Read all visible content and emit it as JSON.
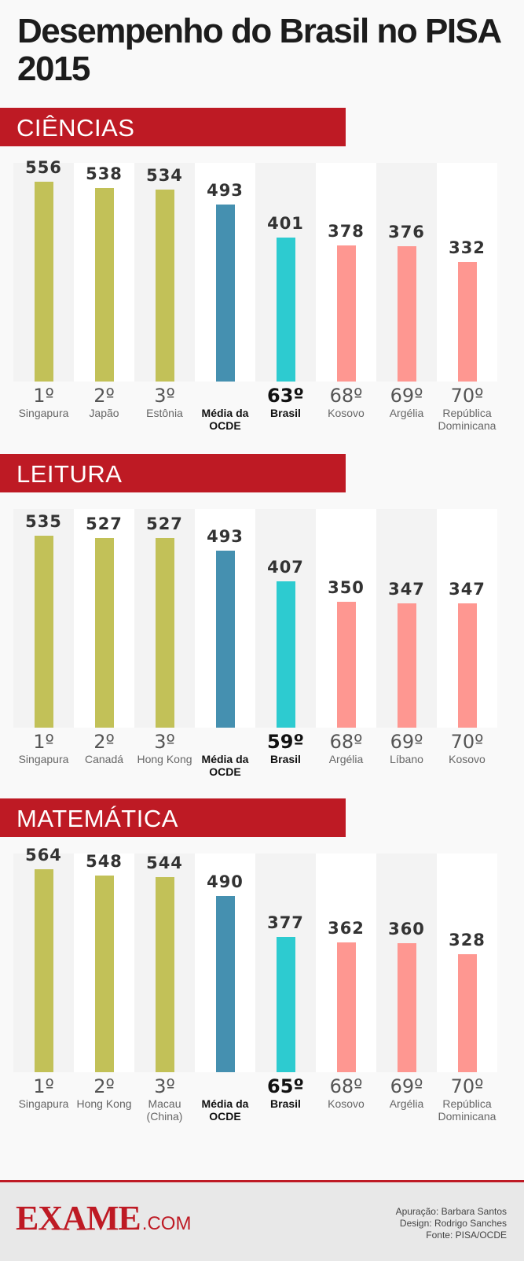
{
  "title": "Desempenho do Brasil no PISA 2015",
  "colors": {
    "band": "#be1a24",
    "top3": "#c2c158",
    "oecd": "#4590b0",
    "brazil": "#2dcbd0",
    "others": "#fe9791",
    "col_light": "#ffffff",
    "col_shade": "#f3f3f3"
  },
  "chart_data": [
    {
      "type": "bar",
      "title": "CIÊNCIAS",
      "ylim": [
        0,
        600
      ],
      "items": [
        {
          "value": 556,
          "rank": "1º",
          "label": "Singapura",
          "group": "top3"
        },
        {
          "value": 538,
          "rank": "2º",
          "label": "Japão",
          "group": "top3"
        },
        {
          "value": 534,
          "rank": "3º",
          "label": "Estônia",
          "group": "top3"
        },
        {
          "value": 493,
          "rank": "",
          "label": "Média da OCDE",
          "group": "oecd"
        },
        {
          "value": 401,
          "rank": "63º",
          "label": "Brasil",
          "group": "brazil"
        },
        {
          "value": 378,
          "rank": "68º",
          "label": "Kosovo",
          "group": "others"
        },
        {
          "value": 376,
          "rank": "69º",
          "label": "Argélia",
          "group": "others"
        },
        {
          "value": 332,
          "rank": "70º",
          "label": "República Dominicana",
          "group": "others"
        }
      ]
    },
    {
      "type": "bar",
      "title": "LEITURA",
      "ylim": [
        0,
        600
      ],
      "items": [
        {
          "value": 535,
          "rank": "1º",
          "label": "Singapura",
          "group": "top3"
        },
        {
          "value": 527,
          "rank": "2º",
          "label": "Canadá",
          "group": "top3"
        },
        {
          "value": 527,
          "rank": "3º",
          "label": "Hong Kong",
          "group": "top3"
        },
        {
          "value": 493,
          "rank": "",
          "label": "Média da OCDE",
          "group": "oecd"
        },
        {
          "value": 407,
          "rank": "59º",
          "label": "Brasil",
          "group": "brazil"
        },
        {
          "value": 350,
          "rank": "68º",
          "label": "Argélia",
          "group": "others"
        },
        {
          "value": 347,
          "rank": "69º",
          "label": "Líbano",
          "group": "others"
        },
        {
          "value": 347,
          "rank": "70º",
          "label": "Kosovo",
          "group": "others"
        }
      ]
    },
    {
      "type": "bar",
      "title": "MATEMÁTICA",
      "ylim": [
        0,
        600
      ],
      "items": [
        {
          "value": 564,
          "rank": "1º",
          "label": "Singapura",
          "group": "top3"
        },
        {
          "value": 548,
          "rank": "2º",
          "label": "Hong Kong",
          "group": "top3"
        },
        {
          "value": 544,
          "rank": "3º",
          "label": "Macau (China)",
          "group": "top3"
        },
        {
          "value": 490,
          "rank": "",
          "label": "Média da OCDE",
          "group": "oecd"
        },
        {
          "value": 377,
          "rank": "65º",
          "label": "Brasil",
          "group": "brazil"
        },
        {
          "value": 362,
          "rank": "68º",
          "label": "Kosovo",
          "group": "others"
        },
        {
          "value": 360,
          "rank": "69º",
          "label": "Argélia",
          "group": "others"
        },
        {
          "value": 328,
          "rank": "70º",
          "label": "República Dominicana",
          "group": "others"
        }
      ]
    }
  ],
  "footer": {
    "logo_main": "EXAME",
    "logo_domain": ".COM",
    "credits": [
      "Apuração: Barbara Santos",
      "Design: Rodrigo Sanches",
      "Fonte: PISA/OCDE"
    ]
  }
}
